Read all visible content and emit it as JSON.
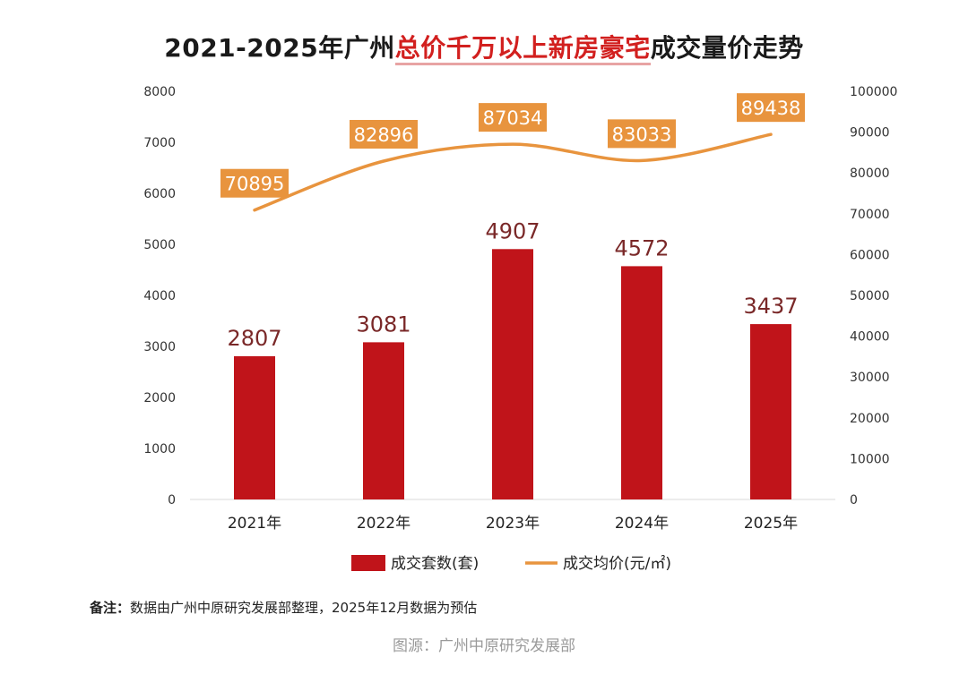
{
  "title": {
    "prefix": "2021-2025年广州",
    "highlight": "总价千万以上新房豪宅",
    "suffix": "成交量价走势"
  },
  "chart_data": {
    "type": "bar+line",
    "categories": [
      "2021年",
      "2022年",
      "2023年",
      "2024年",
      "2025年"
    ],
    "series": [
      {
        "name": "成交套数(套)",
        "type": "bar",
        "axis": "left",
        "values": [
          2807,
          3081,
          4907,
          4572,
          3437
        ],
        "color": "#c0141a",
        "label_color": "#7a2828"
      },
      {
        "name": "成交均价(元/㎡)",
        "type": "line",
        "axis": "right",
        "values": [
          70895,
          82896,
          87034,
          83033,
          89438
        ],
        "color": "#e8943e"
      }
    ],
    "y_left": {
      "min": 0,
      "max": 8000,
      "ticks": [
        0,
        1000,
        2000,
        3000,
        4000,
        5000,
        6000,
        7000,
        8000
      ]
    },
    "y_right": {
      "min": 0,
      "max": 100000,
      "ticks": [
        0,
        10000,
        20000,
        30000,
        40000,
        50000,
        60000,
        70000,
        80000,
        90000,
        100000
      ]
    },
    "grid": false,
    "legend_position": "bottom"
  },
  "note": {
    "label": "备注：",
    "text": "数据由广州中原研究发展部整理，2025年12月数据为预估"
  },
  "source": "图源：广州中原研究发展部"
}
